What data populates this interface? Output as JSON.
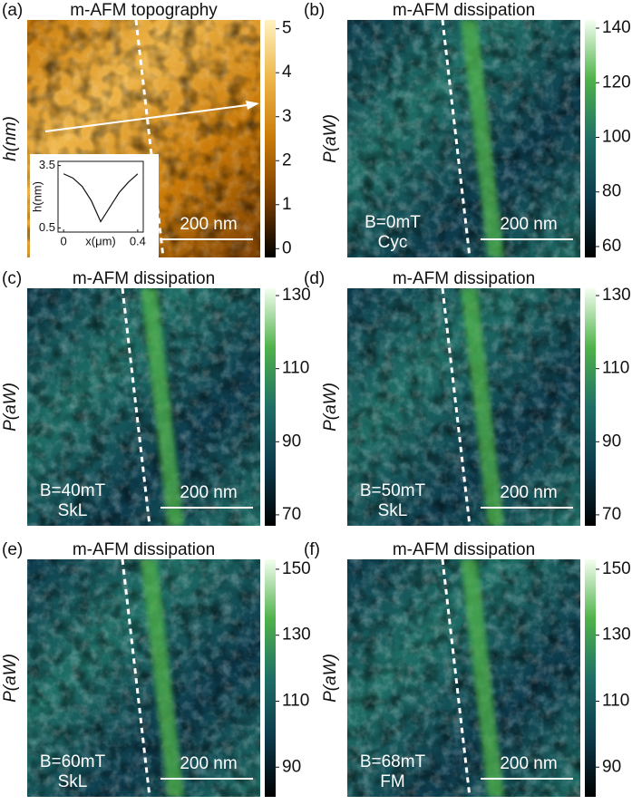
{
  "panels": [
    {
      "label": "(a)",
      "title": "m-AFM topography",
      "ylabel": "h(nm)",
      "scalebar": "200 nm",
      "colorbar": {
        "colors": [
          "#000000",
          "#7a3e00",
          "#c97a08",
          "#eeb548",
          "#fff2c0"
        ],
        "lim": [
          -0.2,
          5.2
        ],
        "ticks": [
          0,
          1,
          2,
          3,
          4,
          5
        ]
      },
      "inset": {
        "ylabel": "h(nm)",
        "xlabel": "x(μm)",
        "x": [
          0,
          0.05,
          0.1,
          0.15,
          0.2,
          0.25,
          0.3,
          0.35,
          0.4
        ],
        "values": [
          3.1,
          2.9,
          2.5,
          1.8,
          0.8,
          1.5,
          2.2,
          2.7,
          3.1
        ],
        "xlim": [
          -0.03,
          0.43
        ],
        "ylim": [
          0.3,
          3.7
        ],
        "xticks": [
          0,
          0.4
        ],
        "yticks": [
          0.5,
          3.5
        ]
      }
    },
    {
      "label": "(b)",
      "title": "m-AFM dissipation",
      "ylabel": "P(aW)",
      "scalebar": "200 nm",
      "annotations": [
        "B=0mT",
        "Cyc"
      ],
      "colorbar": {
        "colors": [
          "#000000",
          "#0c3a4c",
          "#1f6e66",
          "#4fb24a",
          "#f4fff0"
        ],
        "lim": [
          56,
          143
        ],
        "ticks": [
          60,
          80,
          100,
          120,
          140
        ]
      }
    },
    {
      "label": "(c)",
      "title": "m-AFM dissipation",
      "ylabel": "P(aW)",
      "scalebar": "200 nm",
      "annotations": [
        "B=40mT",
        "SkL"
      ],
      "colorbar": {
        "colors": [
          "#000000",
          "#0c3a4c",
          "#1f6e66",
          "#4fb24a",
          "#f4fff0"
        ],
        "lim": [
          67,
          132
        ],
        "ticks": [
          70,
          90,
          110,
          130
        ]
      }
    },
    {
      "label": "(d)",
      "title": "m-AFM dissipation",
      "ylabel": "P(aW)",
      "scalebar": "200 nm",
      "annotations": [
        "B=50mT",
        "SkL"
      ],
      "colorbar": {
        "colors": [
          "#000000",
          "#0c3a4c",
          "#1f6e66",
          "#4fb24a",
          "#f4fff0"
        ],
        "lim": [
          67,
          132
        ],
        "ticks": [
          70,
          90,
          110,
          130
        ]
      }
    },
    {
      "label": "(e)",
      "title": "m-AFM dissipation",
      "ylabel": "P(aW)",
      "scalebar": "200 nm",
      "annotations": [
        "B=60mT",
        "SkL"
      ],
      "colorbar": {
        "colors": [
          "#000000",
          "#0c3a4c",
          "#1f6e66",
          "#4fb24a",
          "#f4fff0"
        ],
        "lim": [
          81,
          153
        ],
        "ticks": [
          90,
          110,
          130,
          150
        ]
      }
    },
    {
      "label": "(f)",
      "title": "m-AFM dissipation",
      "ylabel": "P(aW)",
      "scalebar": "200 nm",
      "annotations": [
        "B=68mT",
        "FM"
      ],
      "colorbar": {
        "colors": [
          "#000000",
          "#0c3a4c",
          "#1f6e66",
          "#4fb24a",
          "#f4fff0"
        ],
        "lim": [
          81,
          153
        ],
        "ticks": [
          90,
          110,
          130,
          150
        ]
      }
    }
  ]
}
